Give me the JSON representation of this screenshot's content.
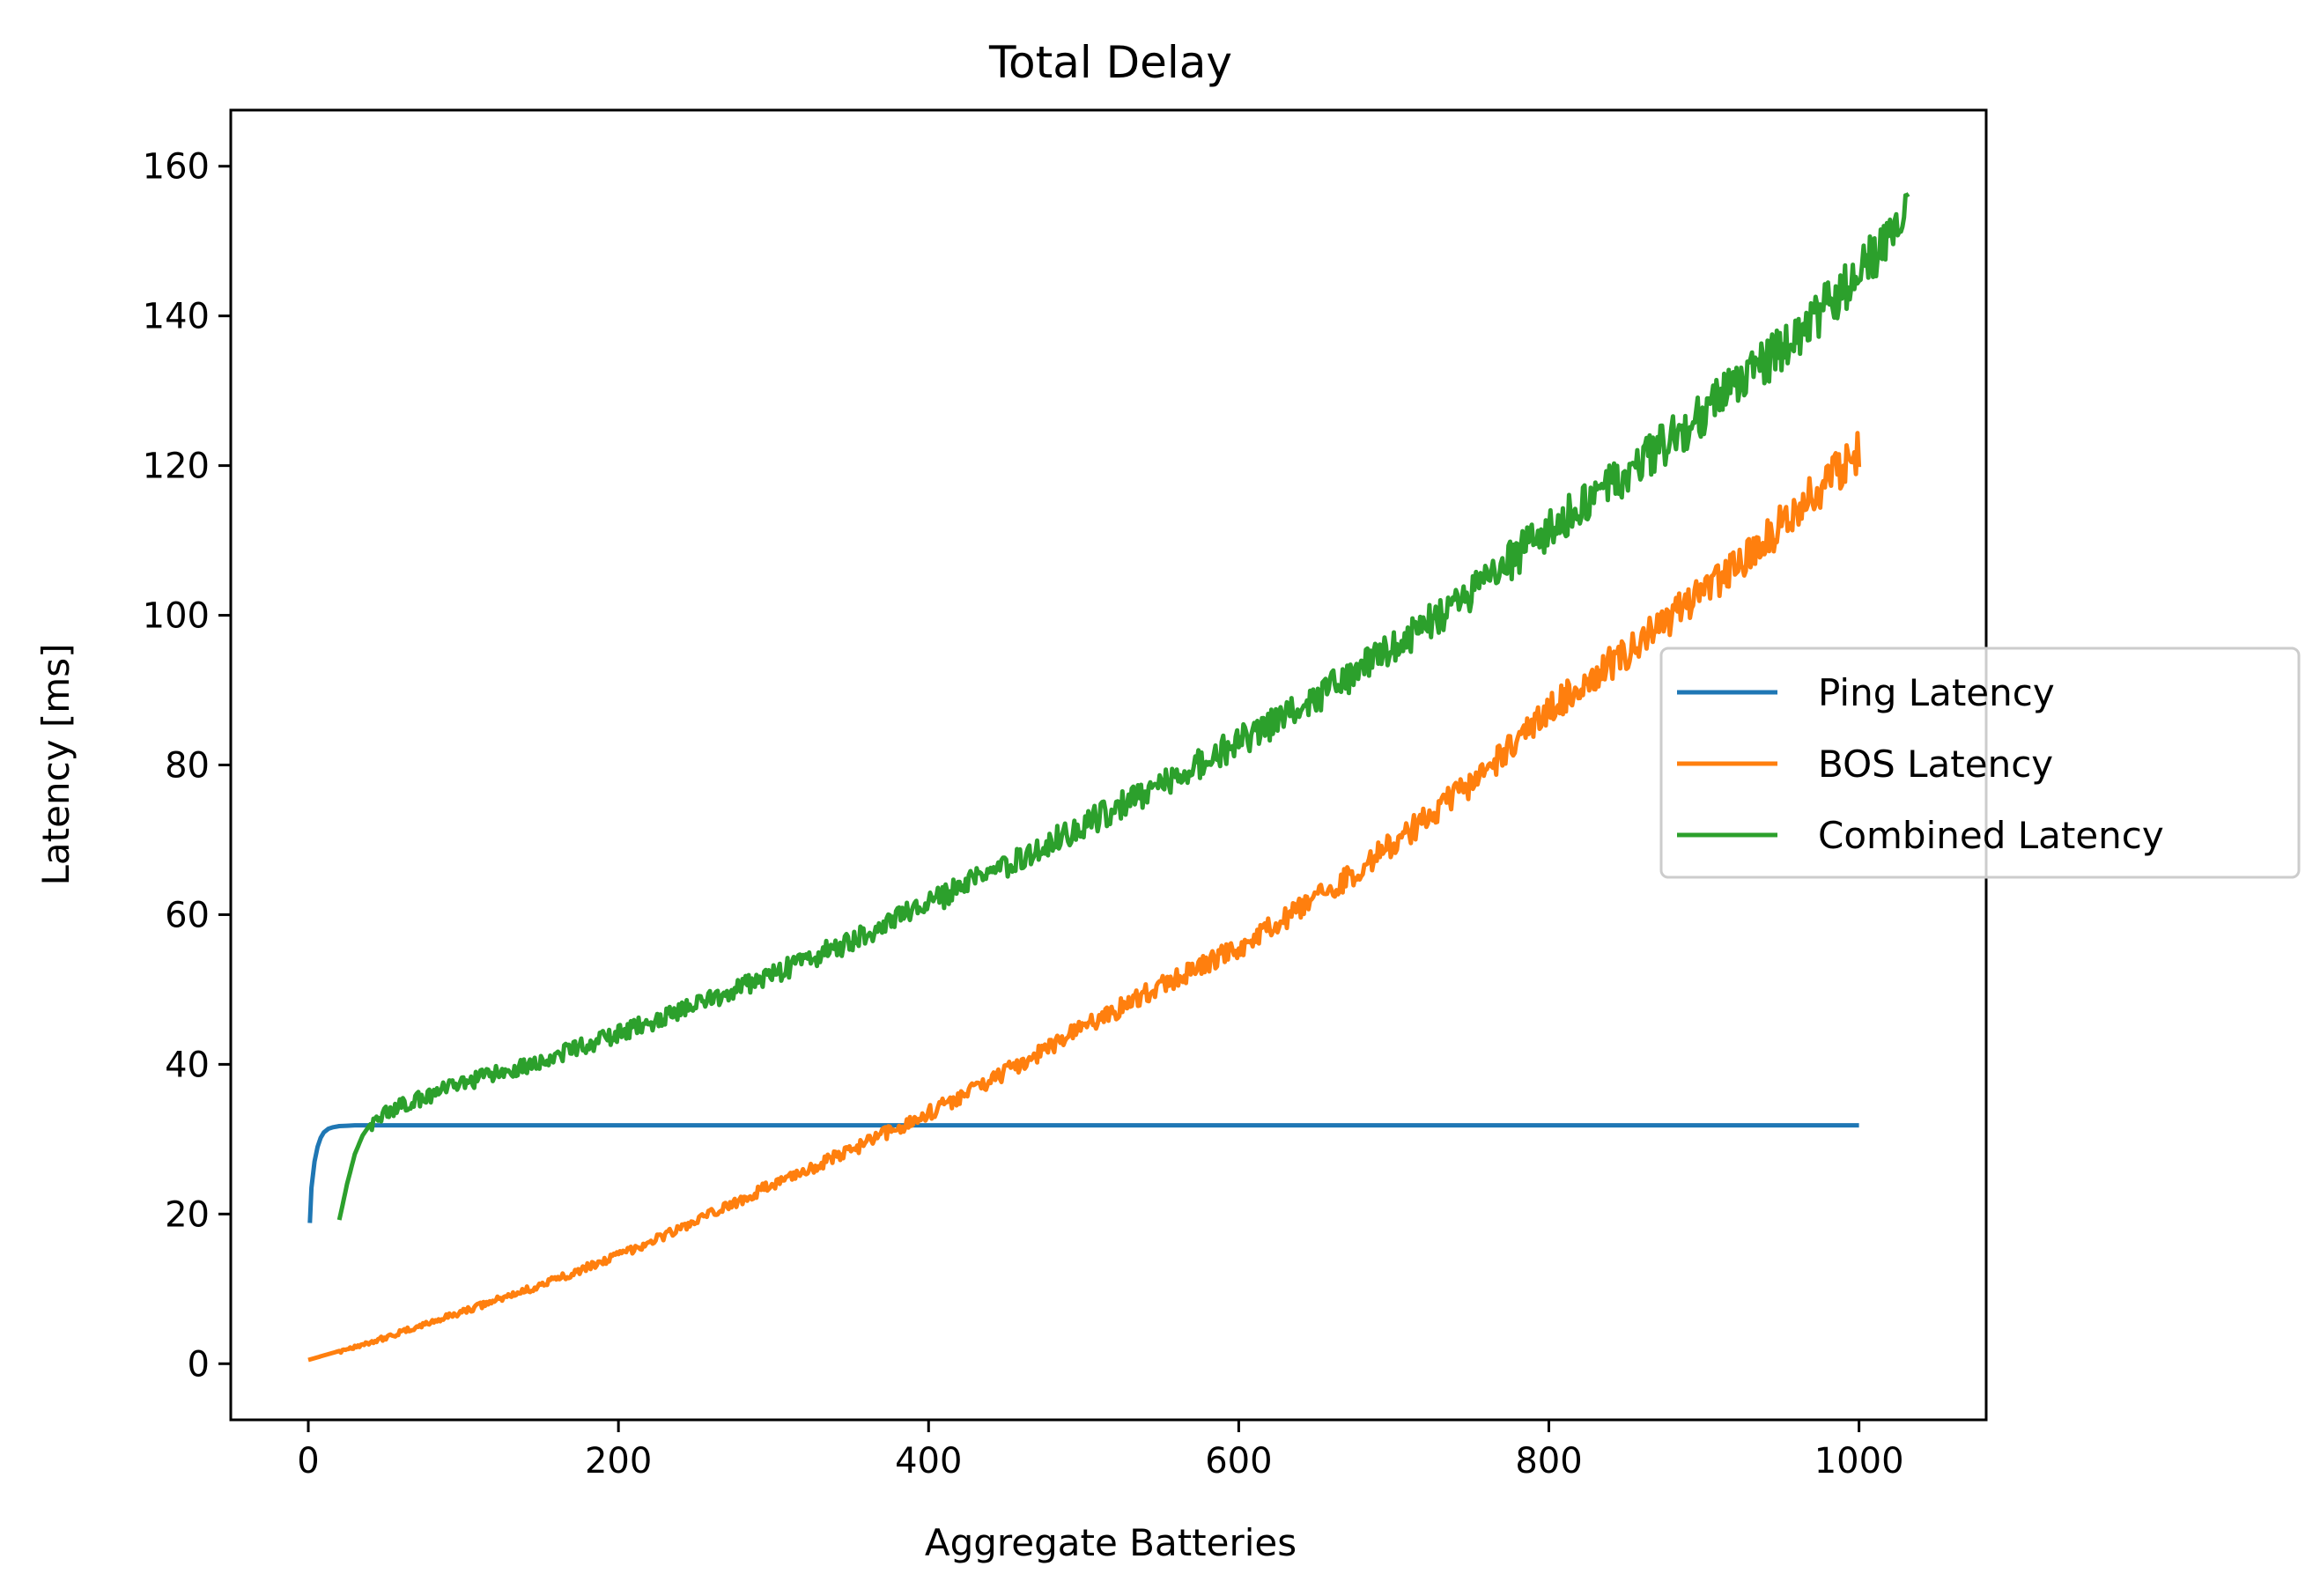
{
  "chart_data": {
    "type": "line",
    "title": "Total Delay",
    "xlabel": "Aggregate Batteries",
    "ylabel": "Latency [ms]",
    "xlim": [
      -50,
      1082
    ],
    "ylim": [
      -7.5,
      167.5
    ],
    "xticks": [
      0,
      200,
      400,
      600,
      800,
      1000
    ],
    "yticks": [
      0,
      20,
      40,
      60,
      80,
      100,
      120,
      140,
      160
    ],
    "grid": false,
    "legend_position": "center-right",
    "series": [
      {
        "name": "Ping Latency",
        "color": "#1f77b4",
        "x": [
          1,
          2,
          4,
          6,
          8,
          10,
          13,
          16,
          20,
          25,
          30,
          40,
          60,
          100,
          200,
          400,
          600,
          800,
          1000
        ],
        "y": [
          18.8,
          23.5,
          27.0,
          29.0,
          30.2,
          30.9,
          31.4,
          31.6,
          31.75,
          31.8,
          31.85,
          31.85,
          31.85,
          31.85,
          31.85,
          31.85,
          31.85,
          31.85,
          31.85
        ]
      },
      {
        "name": "BOS Latency",
        "color": "#ff7f0e",
        "x": [
          0,
          50,
          100,
          150,
          200,
          250,
          300,
          350,
          400,
          450,
          500,
          550,
          600,
          650,
          700,
          750,
          780,
          800,
          850,
          900,
          950,
          980,
          1000
        ],
        "y": [
          0.5,
          3.5,
          7.0,
          10.5,
          14.5,
          19.0,
          24.0,
          28.5,
          33.5,
          39.0,
          45.0,
          50.5,
          55.5,
          62.0,
          69.5,
          77.5,
          83.0,
          87.5,
          95.0,
          103.0,
          112.0,
          118.0,
          122.0
        ]
      },
      {
        "name": "Combined Latency",
        "color": "#2ca02c",
        "x": [
          20,
          25,
          30,
          35,
          40,
          50,
          60,
          80,
          100,
          150,
          200,
          250,
          300,
          350,
          400,
          450,
          500,
          550,
          600,
          650,
          700,
          750,
          800,
          850,
          900,
          950,
          1000,
          1032
        ],
        "y": [
          19.2,
          24.0,
          28.0,
          30.5,
          32.0,
          33.5,
          34.5,
          36.0,
          37.5,
          40.5,
          44.0,
          48.0,
          52.0,
          56.5,
          61.5,
          66.5,
          72.0,
          77.5,
          83.0,
          89.0,
          95.5,
          103.0,
          111.5,
          119.0,
          127.0,
          135.5,
          146.0,
          154.0
        ]
      }
    ]
  }
}
